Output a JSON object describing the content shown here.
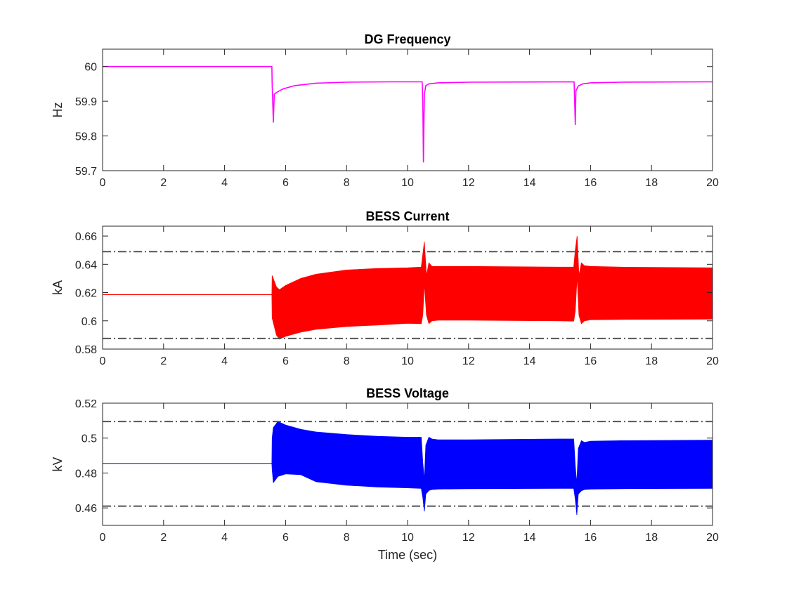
{
  "chart_data": [
    {
      "type": "line",
      "title": "DG Frequency",
      "xlabel": "",
      "ylabel": "Hz",
      "xlim": [
        0,
        20
      ],
      "ylim": [
        59.7,
        60.05
      ],
      "xticks": [
        "0",
        "2",
        "4",
        "6",
        "8",
        "10",
        "12",
        "14",
        "16",
        "18",
        "20"
      ],
      "yticks": [
        "59.7",
        "59.8",
        "59.9",
        "60"
      ],
      "grid": false,
      "series": [
        {
          "color": "#ff00ff",
          "style": "line",
          "x": [
            0,
            5.55,
            5.56,
            5.6,
            5.63,
            5.7,
            5.9,
            6.3,
            7.0,
            8.0,
            9.5,
            10.48,
            10.5,
            10.52,
            10.55,
            10.6,
            10.7,
            11.0,
            12.0,
            15.46,
            15.48,
            15.5,
            15.52,
            15.6,
            15.75,
            16.0,
            17.0,
            20.0
          ],
          "y": [
            60.0,
            60.0,
            59.95,
            59.84,
            59.92,
            59.925,
            59.935,
            59.945,
            59.952,
            59.955,
            59.956,
            59.956,
            59.9,
            59.725,
            59.92,
            59.945,
            59.95,
            59.953,
            59.955,
            59.956,
            59.9,
            59.833,
            59.93,
            59.944,
            59.95,
            59.953,
            59.955,
            59.956
          ]
        }
      ]
    },
    {
      "type": "area",
      "title": "BESS Current",
      "xlabel": "",
      "ylabel": "kA",
      "xlim": [
        0,
        20
      ],
      "ylim": [
        0.58,
        0.667
      ],
      "xticks": [
        "0",
        "2",
        "4",
        "6",
        "8",
        "10",
        "12",
        "14",
        "16",
        "18",
        "20"
      ],
      "yticks": [
        "0.58",
        "0.6",
        "0.62",
        "0.64",
        "0.66"
      ],
      "grid": false,
      "reference_lines": [
        0.649,
        0.5875
      ],
      "series": [
        {
          "color": "#ff0000",
          "style": "envelope",
          "x": [
            0,
            5.55,
            5.56,
            5.7,
            5.8,
            6.0,
            6.5,
            7.0,
            8.0,
            9.0,
            10.0,
            10.45,
            10.5,
            10.55,
            10.62,
            10.7,
            10.8,
            11.0,
            12.0,
            15.0,
            15.45,
            15.5,
            15.56,
            15.62,
            15.7,
            15.8,
            16.0,
            17.0,
            20.0
          ],
          "upper": [
            0.6185,
            0.6185,
            0.632,
            0.624,
            0.622,
            0.625,
            0.63,
            0.633,
            0.636,
            0.637,
            0.6375,
            0.638,
            0.647,
            0.656,
            0.632,
            0.641,
            0.6385,
            0.6385,
            0.6385,
            0.638,
            0.638,
            0.65,
            0.66,
            0.632,
            0.641,
            0.639,
            0.6385,
            0.638,
            0.6375
          ],
          "lower": [
            0.6185,
            0.6185,
            0.602,
            0.59,
            0.587,
            0.589,
            0.592,
            0.594,
            0.596,
            0.597,
            0.5982,
            0.598,
            0.604,
            0.6265,
            0.604,
            0.598,
            0.6,
            0.6005,
            0.6005,
            0.6,
            0.5998,
            0.607,
            0.632,
            0.604,
            0.598,
            0.6,
            0.6008,
            0.601,
            0.6012
          ]
        }
      ]
    },
    {
      "type": "area",
      "title": "BESS Voltage",
      "xlabel": "Time (sec)",
      "ylabel": "kV",
      "xlim": [
        0,
        20
      ],
      "ylim": [
        0.45,
        0.52
      ],
      "xticks": [
        "0",
        "2",
        "4",
        "6",
        "8",
        "10",
        "12",
        "14",
        "16",
        "18",
        "20"
      ],
      "yticks": [
        "0.46",
        "0.48",
        "0.5",
        "0.52"
      ],
      "grid": false,
      "reference_lines": [
        0.5095,
        0.461
      ],
      "series": [
        {
          "color": "#0000ff",
          "style": "envelope",
          "x": [
            0,
            5.55,
            5.56,
            5.6,
            5.75,
            6.0,
            6.5,
            7.0,
            8.0,
            9.0,
            10.0,
            10.45,
            10.5,
            10.55,
            10.6,
            10.7,
            10.8,
            11.0,
            12.0,
            15.0,
            15.45,
            15.5,
            15.55,
            15.6,
            15.7,
            15.8,
            16.0,
            17.0,
            20.0
          ],
          "upper": [
            0.4855,
            0.4855,
            0.5,
            0.506,
            0.5095,
            0.5075,
            0.505,
            0.5035,
            0.502,
            0.501,
            0.5005,
            0.5005,
            0.486,
            0.476,
            0.496,
            0.5005,
            0.4995,
            0.499,
            0.499,
            0.4995,
            0.4995,
            0.484,
            0.474,
            0.494,
            0.4985,
            0.4975,
            0.4982,
            0.4985,
            0.4988
          ],
          "lower": [
            0.4855,
            0.4855,
            0.482,
            0.4745,
            0.478,
            0.4795,
            0.479,
            0.475,
            0.473,
            0.472,
            0.4715,
            0.4712,
            0.466,
            0.458,
            0.468,
            0.47,
            0.4705,
            0.4708,
            0.471,
            0.4712,
            0.4712,
            0.465,
            0.456,
            0.468,
            0.4698,
            0.4705,
            0.4708,
            0.471,
            0.4712
          ]
        }
      ]
    }
  ]
}
